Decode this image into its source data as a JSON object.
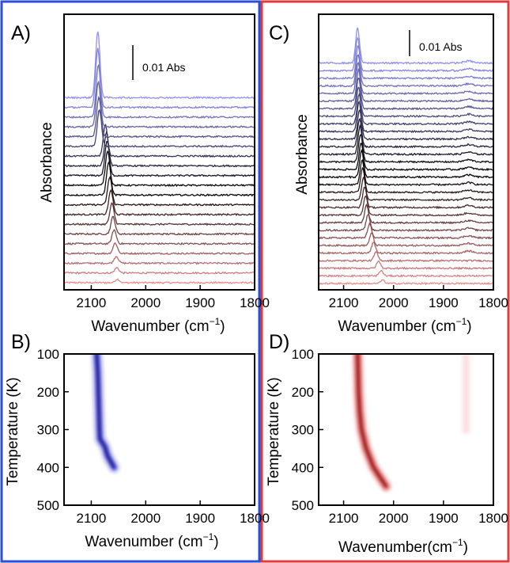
{
  "figure": {
    "left_frame_color": "#2a4fd8",
    "right_frame_color": "#e23b3b"
  },
  "chart_data": [
    {
      "panel": "A)",
      "type": "line",
      "xlabel": "Wavenumber",
      "xlabel_unit": "(cm",
      "xlabel_exp": "−1",
      "xlabel_close": ")",
      "ylabel": "Absorbance",
      "xlim": [
        2150,
        1800
      ],
      "x_ticks": [
        "2100",
        "2000",
        "1900",
        "1800"
      ],
      "scale_bar": "0.01 Abs",
      "series_count": 20,
      "color_start": "#e88a8a",
      "color_mid": "#000000",
      "color_end": "#8f8ff0",
      "peak_positions": [
        2052,
        2053,
        2054,
        2056,
        2058,
        2060,
        2062,
        2064,
        2066,
        2068,
        2070,
        2071,
        2072,
        2074,
        2085,
        2086,
        2087,
        2087,
        2088,
        2088
      ],
      "peak_heights": [
        0.002,
        0.003,
        0.004,
        0.006,
        0.008,
        0.01,
        0.012,
        0.014,
        0.016,
        0.019,
        0.02,
        0.02,
        0.019,
        0.018,
        0.021,
        0.023,
        0.026,
        0.03,
        0.034,
        0.038
      ]
    },
    {
      "panel": "C)",
      "type": "line",
      "xlabel": "Wavenumber",
      "xlabel_unit": "(cm",
      "xlabel_exp": "−1",
      "xlabel_close": ")",
      "ylabel": "Absorbance",
      "xlim": [
        2150,
        1800
      ],
      "x_ticks": [
        "2100",
        "2000",
        "1900",
        "1800"
      ],
      "scale_bar": "0.01 Abs",
      "series_count": 30,
      "color_start": "#e88a8a",
      "color_mid": "#000000",
      "color_end": "#8f8ff0",
      "peak_positions": [
        2022,
        2025,
        2030,
        2035,
        2040,
        2044,
        2048,
        2051,
        2054,
        2056,
        2058,
        2060,
        2062,
        2063,
        2064,
        2065,
        2066,
        2067,
        2068,
        2068,
        2069,
        2069,
        2070,
        2070,
        2070,
        2071,
        2071,
        2071,
        2072,
        2072
      ],
      "peak_heights": [
        0.002,
        0.003,
        0.004,
        0.005,
        0.006,
        0.007,
        0.008,
        0.009,
        0.01,
        0.011,
        0.012,
        0.013,
        0.014,
        0.014,
        0.015,
        0.015,
        0.016,
        0.016,
        0.016,
        0.017,
        0.017,
        0.017,
        0.017,
        0.018,
        0.018,
        0.018,
        0.018,
        0.019,
        0.019,
        0.02
      ],
      "minor_peak_position": 1850
    },
    {
      "panel": "B)",
      "type": "heatmap",
      "xlabel": "Wavenumber",
      "xlabel_unit": "(cm",
      "xlabel_exp": "−1",
      "xlabel_close": ")",
      "ylabel": "Temperature (K)",
      "xlim": [
        2150,
        1800
      ],
      "ylim": [
        100,
        500
      ],
      "x_ticks": [
        "2100",
        "2000",
        "1900",
        "1800"
      ],
      "y_ticks": [
        "100",
        "200",
        "300",
        "400",
        "500"
      ],
      "colormap": "#1a1ad0",
      "ridge": [
        {
          "T": 100,
          "wn": 2090
        },
        {
          "T": 150,
          "wn": 2088
        },
        {
          "T": 200,
          "wn": 2087
        },
        {
          "T": 250,
          "wn": 2086
        },
        {
          "T": 300,
          "wn": 2085
        },
        {
          "T": 325,
          "wn": 2084
        },
        {
          "T": 345,
          "wn": 2075
        },
        {
          "T": 370,
          "wn": 2070
        },
        {
          "T": 400,
          "wn": 2058
        }
      ]
    },
    {
      "panel": "D)",
      "type": "heatmap",
      "xlabel": "Wavenumber",
      "xlabel_unit": "(cm",
      "xlabel_exp": "−1",
      "xlabel_close": ")",
      "ylabel": "Temperature (K)",
      "xlim": [
        2150,
        1800
      ],
      "ylim": [
        100,
        500
      ],
      "x_ticks": [
        "2100",
        "2000",
        "1900",
        "1800"
      ],
      "y_ticks": [
        "100",
        "200",
        "300",
        "400",
        "500"
      ],
      "colormap": "#d41414",
      "ridge": [
        {
          "T": 100,
          "wn": 2072
        },
        {
          "T": 150,
          "wn": 2071
        },
        {
          "T": 200,
          "wn": 2070
        },
        {
          "T": 250,
          "wn": 2068
        },
        {
          "T": 300,
          "wn": 2064
        },
        {
          "T": 350,
          "wn": 2055
        },
        {
          "T": 400,
          "wn": 2040
        },
        {
          "T": 430,
          "wn": 2025
        },
        {
          "T": 450,
          "wn": 2015
        }
      ],
      "faint_band": {
        "wn": 1855,
        "T_start": 100,
        "T_end": 310
      }
    }
  ]
}
